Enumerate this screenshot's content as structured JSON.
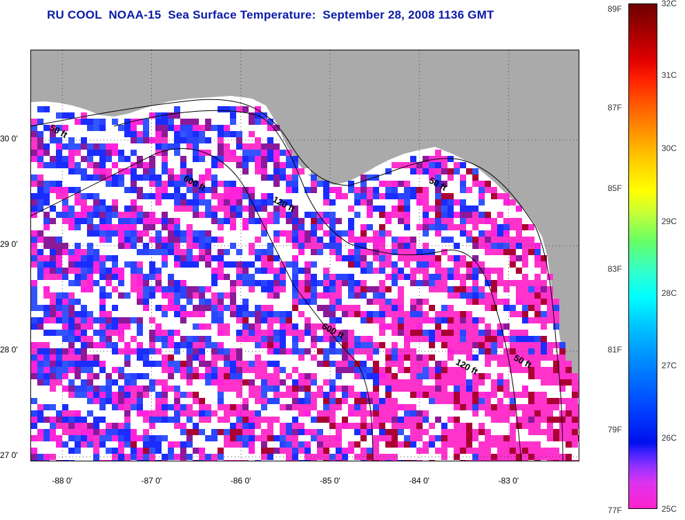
{
  "title": "RU COOL  NOAA-15  Sea Surface Temperature:  September 28, 2008 1136 GMT",
  "map": {
    "lat_ticks": [
      {
        "value": 30,
        "label": "30 0'"
      },
      {
        "value": 29,
        "label": "29 0'"
      },
      {
        "value": 28,
        "label": "28 0'"
      },
      {
        "value": 27,
        "label": "27 0'"
      }
    ],
    "lon_ticks": [
      {
        "value": -88,
        "label": "-88 0'"
      },
      {
        "value": -87,
        "label": "-87 0'"
      },
      {
        "value": -86,
        "label": "-86 0'"
      },
      {
        "value": -85,
        "label": "-85 0'"
      },
      {
        "value": -84,
        "label": "-84 0'"
      },
      {
        "value": -83,
        "label": "-83 0'"
      }
    ],
    "lat_range": [
      26.95,
      30.85
    ],
    "lon_range": [
      -88.35,
      -82.2
    ],
    "depth_labels": [
      {
        "text": "50 ft",
        "lon": -88.15,
        "lat": 30.1
      },
      {
        "text": "600 ft",
        "lon": -86.65,
        "lat": 29.62
      },
      {
        "text": "120 ft",
        "lon": -85.65,
        "lat": 29.42
      },
      {
        "text": "50 ft",
        "lon": -83.9,
        "lat": 29.6
      },
      {
        "text": "600 ft",
        "lon": -85.1,
        "lat": 28.22
      },
      {
        "text": "120 ft",
        "lon": -83.6,
        "lat": 27.88
      },
      {
        "text": "50 ft",
        "lon": -82.95,
        "lat": 27.92
      }
    ],
    "land_color": "#aaaaaa",
    "grid": true
  },
  "colorbar": {
    "celsius_ticks": [
      "32C",
      "31C",
      "30C",
      "29C",
      "28C",
      "27C",
      "26C",
      "25C"
    ],
    "fahrenheit_ticks": [
      "89F",
      "87F",
      "85F",
      "83F",
      "81F",
      "79F",
      "77F"
    ],
    "range_c": [
      25,
      32
    ]
  }
}
